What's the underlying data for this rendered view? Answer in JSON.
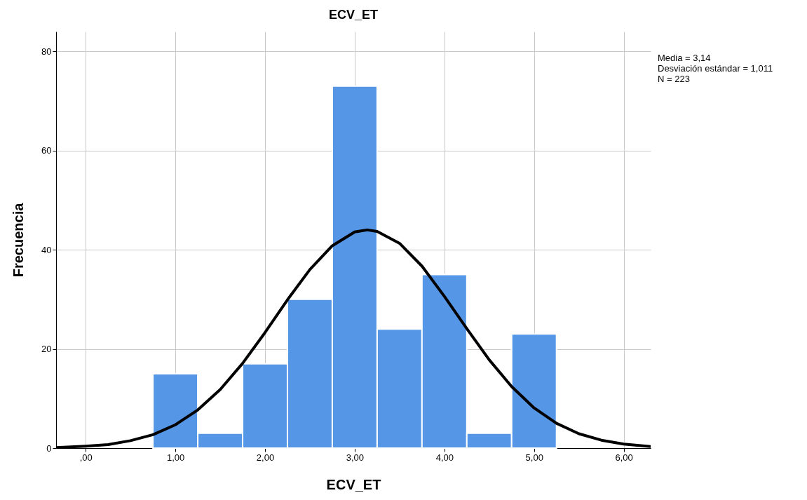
{
  "chart_data": {
    "type": "histogram",
    "title": "ECV_ET",
    "xlabel": "ECV_ET",
    "ylabel": "Frecuencia",
    "annotations": [
      "Media = 3,14",
      "Desviación estándar = 1,011",
      "N = 223"
    ],
    "bins": [
      0.75,
      1.25,
      1.75,
      2.25,
      2.75,
      3.25,
      3.75,
      4.25,
      4.75,
      5.25
    ],
    "values": [
      15,
      3,
      17,
      30,
      73,
      24,
      35,
      3,
      23
    ],
    "color": "#5596e6",
    "series": [
      {
        "type": "line",
        "color": "#000000",
        "x": [
          -0.33,
          0,
          0.25,
          0.5,
          0.75,
          1,
          1.25,
          1.5,
          1.75,
          2,
          2.25,
          2.5,
          2.75,
          3,
          3.14,
          3.25,
          3.5,
          3.75,
          4,
          4.25,
          4.5,
          4.75,
          5,
          5.25,
          5.5,
          5.75,
          6,
          6.3
        ],
        "values": [
          0.1,
          0.4,
          0.7,
          1.5,
          2.7,
          4.7,
          7.7,
          11.8,
          17.1,
          23.3,
          29.9,
          36,
          40.8,
          43.6,
          44,
          43.7,
          41.3,
          36.7,
          30.6,
          24.1,
          17.8,
          12.4,
          8.1,
          5,
          2.9,
          1.6,
          0.8,
          0.3
        ]
      }
    ],
    "xlim": [
      -0.33,
      6.3
    ],
    "xticks": [
      {
        "value": 0,
        "label": ",00"
      },
      {
        "value": 1,
        "label": "1,00"
      },
      {
        "value": 2,
        "label": "2,00"
      },
      {
        "value": 3,
        "label": "3,00"
      },
      {
        "value": 4,
        "label": "4,00"
      },
      {
        "value": 5,
        "label": "5,00"
      },
      {
        "value": 6,
        "label": "6,00"
      }
    ],
    "ylim": [
      0,
      84
    ],
    "yticks": [
      0,
      20,
      40,
      60,
      80
    ],
    "grid": true
  }
}
